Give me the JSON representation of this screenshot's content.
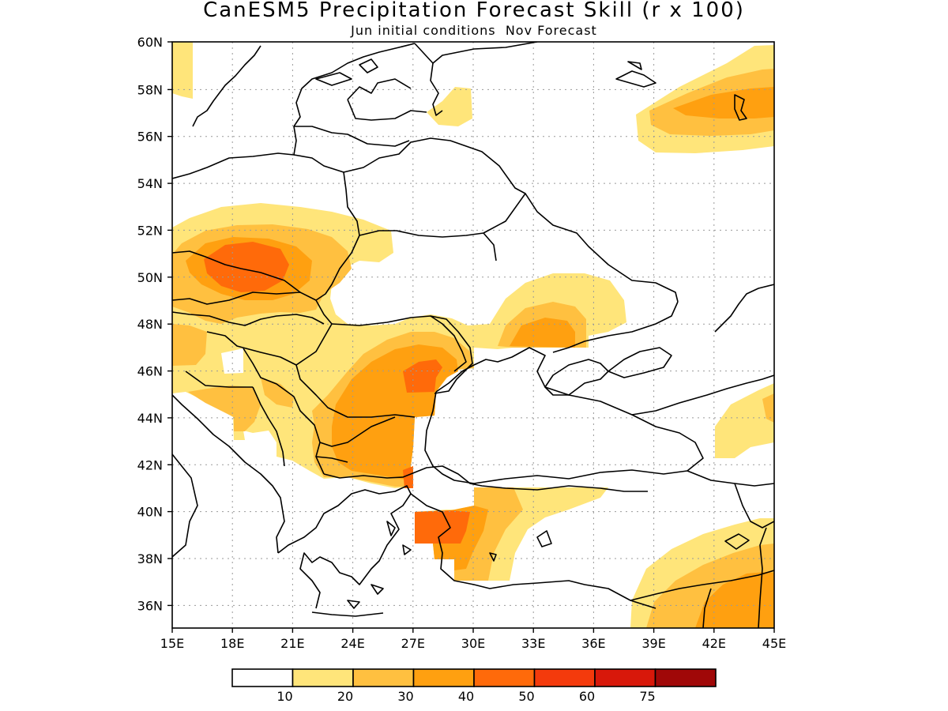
{
  "title": "CanESM5 Precipitation Forecast Skill (r x 100)",
  "subtitle": "Jun initial conditions  Nov Forecast",
  "map": {
    "region": "Eastern Europe / Black Sea",
    "lon_range": [
      15,
      45
    ],
    "lat_range": [
      35,
      60
    ],
    "grid": "dotted",
    "lat_ticks": [
      "60N",
      "58N",
      "56N",
      "54N",
      "52N",
      "50N",
      "48N",
      "46N",
      "44N",
      "42N",
      "40N",
      "38N",
      "36N"
    ],
    "lon_ticks": [
      "15E",
      "18E",
      "21E",
      "24E",
      "27E",
      "30E",
      "33E",
      "36E",
      "39E",
      "42E",
      "45E"
    ]
  },
  "legend": {
    "colors": [
      "#ffffff",
      "#ffe57a",
      "#ffc040",
      "#ffa010",
      "#ff6a0a",
      "#f43a0c",
      "#d8180a",
      "#a00808"
    ],
    "labels": [
      "10",
      "20",
      "30",
      "40",
      "50",
      "60",
      "75"
    ]
  }
}
